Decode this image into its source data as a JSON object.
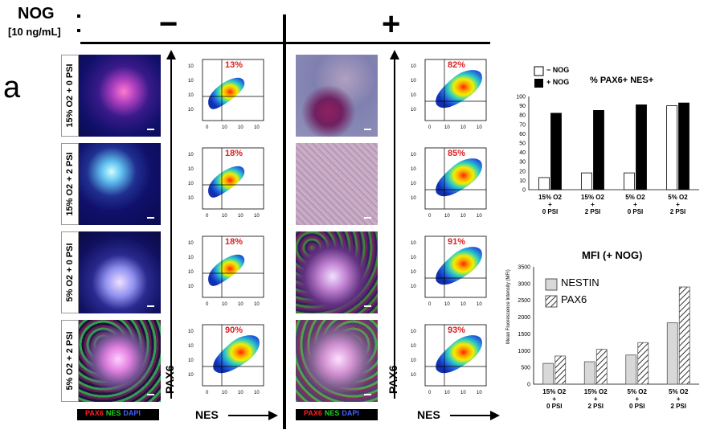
{
  "header": {
    "nog_label": "NOG",
    "nog_conc": "[10 ng/mL]",
    "minus": "−",
    "plus": "+"
  },
  "panel_label": "a",
  "row_labels": [
    "15% O2 + 0 PSI",
    "15% O2 + 2 PSI",
    "5% O2 + 0 PSI",
    "5% O2 + 2 PSI"
  ],
  "minus_percents": [
    "13%",
    "18%",
    "18%",
    "90%"
  ],
  "plus_percents": [
    "82%",
    "85%",
    "91%",
    "93%"
  ],
  "flow_axes": {
    "y_label": "PAX6",
    "x_label": "NES",
    "y_ticks": [
      "10",
      "10",
      "10",
      "10"
    ],
    "x_ticks": [
      "0",
      "10",
      "10",
      "10"
    ]
  },
  "stain_legend": {
    "pax6": "PAX6",
    "nes": "NES",
    "dapi": "DAPI"
  },
  "colors": {
    "pax6": "#ff2020",
    "nes": "#20d020",
    "dapi": "#4060ff",
    "pct": "#e02020"
  },
  "chart_data": [
    {
      "type": "bar",
      "title": "% PAX6+ NES+",
      "categories": [
        "15% O2 + 0 PSI",
        "15% O2 + 2 PSI",
        "5% O2 + 0 PSI",
        "5% O2 + 2 PSI"
      ],
      "series": [
        {
          "name": "− NOG",
          "values": [
            13,
            18,
            18,
            90
          ]
        },
        {
          "name": "+ NOG",
          "values": [
            82,
            85,
            91,
            93
          ]
        }
      ],
      "ylim": [
        0,
        100
      ],
      "yticks": [
        0,
        10,
        20,
        30,
        40,
        50,
        60,
        70,
        80,
        90,
        100
      ],
      "xlabel": "",
      "ylabel": "",
      "legend": "top-left"
    },
    {
      "type": "bar",
      "title": "MFI  (+ NOG)",
      "categories": [
        "15% O2 + 0 PSI",
        "15% O2 + 2 PSI",
        "5% O2 + 0 PSI",
        "5% O2 + 2 PSI"
      ],
      "series": [
        {
          "name": "NESTIN",
          "values": [
            620,
            670,
            870,
            1830
          ]
        },
        {
          "name": "PAX6",
          "values": [
            840,
            1040,
            1240,
            2900
          ]
        }
      ],
      "ylim": [
        0,
        3500
      ],
      "yticks": [
        0,
        500,
        1000,
        1500,
        2000,
        2500,
        3000,
        3500
      ],
      "ylabel": "Mean Fluorescence Intensity (MFI)",
      "xlabel": "",
      "legend": "top-left"
    }
  ]
}
